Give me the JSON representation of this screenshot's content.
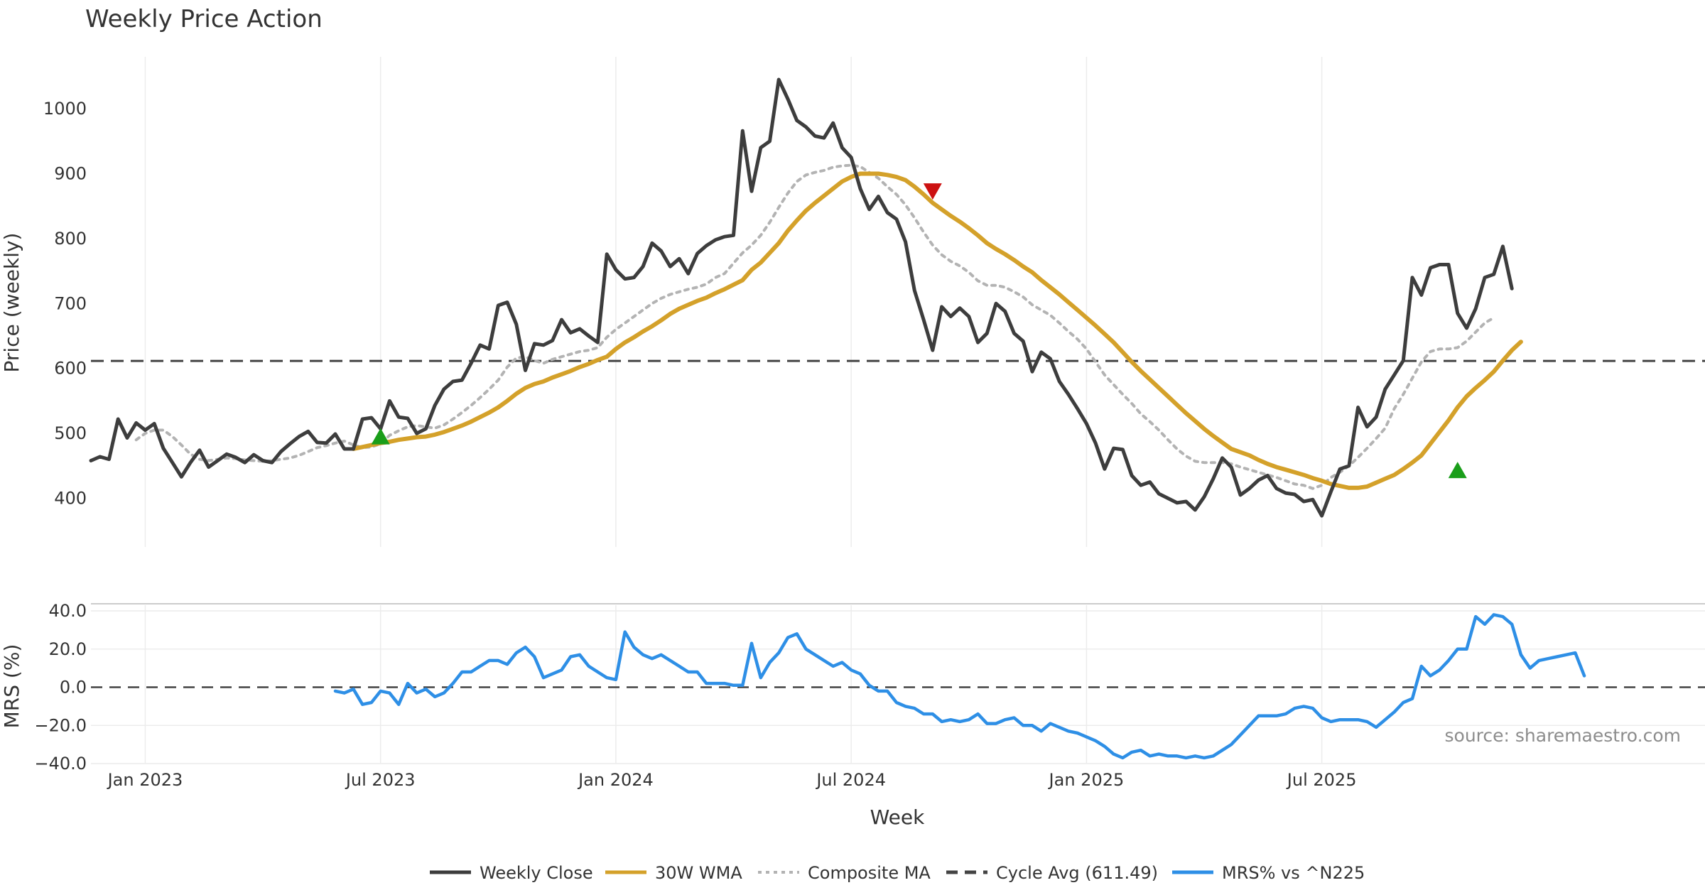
{
  "chart_data": {
    "type": "line",
    "title": "Weekly Price Action",
    "source_label": "source: sharemaestro.com",
    "xlabel": "Week",
    "x_ticks": [
      "Jan 2023",
      "Jul 2023",
      "Jan 2024",
      "Jul 2024",
      "Jan 2025",
      "Jul 2025"
    ],
    "price_panel": {
      "ylabel": "Price (weekly)",
      "ylim": [
        325,
        1080
      ],
      "y_ticks": [
        "400",
        "500",
        "600",
        "700",
        "800",
        "900",
        "1000"
      ],
      "y_tick_values": [
        400,
        500,
        600,
        700,
        800,
        900,
        1000
      ],
      "cycle_avg": 611.49,
      "series": {
        "weekly_close": {
          "name": "Weekly Close",
          "color": "#3d3d3d",
          "start_week": 0,
          "values": [
            458,
            464,
            460,
            522,
            493,
            516,
            505,
            515,
            477,
            455,
            433,
            455,
            474,
            448,
            458,
            468,
            463,
            455,
            467,
            458,
            455,
            472,
            484,
            495,
            503,
            486,
            485,
            499,
            476,
            476,
            522,
            524,
            507,
            550,
            525,
            523,
            500,
            507,
            543,
            568,
            580,
            582,
            608,
            636,
            630,
            697,
            702,
            668,
            597,
            638,
            636,
            643,
            675,
            655,
            661,
            650,
            640,
            776,
            752,
            738,
            740,
            757,
            793,
            781,
            757,
            769,
            746,
            777,
            789,
            798,
            803,
            805,
            966,
            873,
            940,
            950,
            1045,
            1015,
            982,
            972,
            958,
            955,
            978,
            940,
            925,
            877,
            845,
            865,
            840,
            830,
            795,
            720,
            675,
            628,
            695,
            680,
            693,
            680,
            640,
            654,
            700,
            688,
            654,
            642,
            595,
            625,
            615,
            580,
            560,
            538,
            515,
            485,
            445,
            477,
            475,
            435,
            420,
            425,
            407,
            400,
            393,
            395,
            382,
            402,
            430,
            462,
            448,
            405,
            415,
            428,
            435,
            415,
            408,
            406,
            395,
            398,
            373,
            410,
            445,
            450,
            540,
            510,
            525,
            568,
            590,
            612,
            740,
            713,
            755,
            760,
            760,
            685,
            662,
            692,
            740,
            745,
            788,
            723
          ]
        },
        "wma_30w": {
          "name": "30W WMA",
          "color": "#d4a12a",
          "start_week": 29,
          "values": [
            476,
            479,
            482,
            485,
            487,
            490,
            492,
            494,
            495,
            498,
            502,
            507,
            512,
            518,
            525,
            532,
            540,
            550,
            561,
            570,
            576,
            580,
            586,
            591,
            596,
            602,
            607,
            613,
            618,
            630,
            640,
            648,
            657,
            665,
            674,
            684,
            692,
            698,
            704,
            709,
            716,
            722,
            729,
            736,
            752,
            763,
            778,
            793,
            812,
            828,
            843,
            855,
            866,
            877,
            888,
            895,
            900,
            900,
            900,
            898,
            895,
            890,
            880,
            868,
            855,
            845,
            835,
            826,
            816,
            805,
            793,
            784,
            776,
            767,
            757,
            748,
            736,
            725,
            714,
            702,
            690,
            678,
            666,
            653,
            640,
            625,
            610,
            596,
            583,
            570,
            557,
            544,
            531,
            519,
            507,
            496,
            486,
            476,
            471,
            466,
            459,
            453,
            448,
            444,
            440,
            436,
            431,
            427,
            422,
            419,
            416,
            416,
            418,
            424,
            430,
            436,
            445,
            455,
            466,
            484,
            502,
            520,
            540,
            557,
            570,
            582,
            595,
            612,
            628,
            641
          ]
        },
        "composite_ma": {
          "name": "Composite MA",
          "color": "#b3b3b3",
          "start_week": 5,
          "values": [
            490,
            500,
            505,
            505,
            495,
            482,
            468,
            460,
            458,
            460,
            462,
            461,
            459,
            458,
            457,
            458,
            460,
            462,
            466,
            472,
            478,
            481,
            485,
            488,
            482,
            478,
            479,
            484,
            497,
            504,
            510,
            512,
            510,
            508,
            513,
            522,
            532,
            543,
            555,
            568,
            582,
            602,
            616,
            618,
            612,
            608,
            614,
            618,
            622,
            626,
            628,
            632,
            648,
            660,
            670,
            680,
            690,
            700,
            708,
            714,
            718,
            722,
            725,
            730,
            740,
            746,
            762,
            778,
            790,
            805,
            825,
            848,
            870,
            888,
            898,
            902,
            905,
            910,
            912,
            913,
            911,
            902,
            893,
            880,
            868,
            852,
            832,
            810,
            790,
            775,
            765,
            758,
            748,
            735,
            728,
            728,
            725,
            718,
            710,
            698,
            690,
            682,
            670,
            657,
            645,
            630,
            610,
            590,
            575,
            560,
            546,
            530,
            518,
            505,
            490,
            476,
            465,
            457,
            455,
            455,
            455,
            453,
            448,
            444,
            440,
            436,
            432,
            427,
            422,
            420,
            415,
            420,
            432,
            440,
            450,
            463,
            477,
            492,
            508,
            538,
            560,
            585,
            610,
            626,
            630,
            630,
            632,
            642,
            656,
            670,
            678
          ]
        },
        "signals": {
          "buy": [
            {
              "week": 32,
              "price": 495
            },
            {
              "week": 151,
              "price": 443
            }
          ],
          "sell": [
            {
              "week": 93,
              "price": 873
            }
          ]
        }
      }
    },
    "mrs_panel": {
      "ylabel": "MRS (%)",
      "ylim": [
        -40,
        40
      ],
      "y_ticks": [
        "40.0",
        "20.0",
        "0.0",
        "−20.0",
        "−40.0"
      ],
      "y_tick_values": [
        40,
        20,
        0,
        -20,
        -40
      ],
      "series": {
        "mrs": {
          "name": "MRS% vs ^N225",
          "color": "#2e8fe6",
          "start_week": 27,
          "values": [
            -2,
            -3,
            -1,
            -9,
            -8,
            -2,
            -3,
            -9,
            2,
            -3,
            -1,
            -5,
            -3,
            2,
            8,
            8,
            11,
            14,
            14,
            12,
            18,
            21,
            16,
            5,
            7,
            9,
            16,
            17,
            11,
            8,
            5,
            4,
            29,
            21,
            17,
            15,
            17,
            14,
            11,
            8,
            8,
            2,
            2,
            2,
            1,
            1,
            23,
            5,
            13,
            18,
            26,
            28,
            20,
            17,
            14,
            11,
            13,
            9,
            7,
            1,
            -2,
            -2,
            -8,
            -10,
            -11,
            -14,
            -14,
            -18,
            -17,
            -18,
            -17,
            -14,
            -19,
            -19,
            -17,
            -16,
            -20,
            -20,
            -23,
            -19,
            -21,
            -23,
            -24,
            -26,
            -28,
            -31,
            -35,
            -37,
            -34,
            -33,
            -36,
            -35,
            -36,
            -36,
            -37,
            -36,
            -37,
            -36,
            -33,
            -30,
            -25,
            -20,
            -15,
            -15,
            -15,
            -14,
            -11,
            -10,
            -11,
            -16,
            -18,
            -17,
            -17,
            -17,
            -18,
            -21,
            -17,
            -13,
            -8,
            -6,
            11,
            6,
            9,
            14,
            20,
            20,
            37,
            33,
            38,
            37,
            33,
            17,
            10,
            14,
            15,
            16,
            17,
            18,
            6
          ]
        }
      }
    },
    "legend": [
      {
        "label": "Weekly Close",
        "color": "#3d3d3d",
        "style": "solid"
      },
      {
        "label": "30W WMA",
        "color": "#d4a12a",
        "style": "solid"
      },
      {
        "label": "Composite MA",
        "color": "#b3b3b3",
        "style": "dotted"
      },
      {
        "label": "Cycle Avg (611.49)",
        "color": "#444444",
        "style": "dashed"
      },
      {
        "label": "MRS% vs ^N225",
        "color": "#2e8fe6",
        "style": "solid"
      }
    ],
    "colors": {
      "buy_marker": "#1a9e1a",
      "sell_marker": "#cc1111",
      "grid": "#ececec",
      "reference_line": "#444444"
    }
  }
}
